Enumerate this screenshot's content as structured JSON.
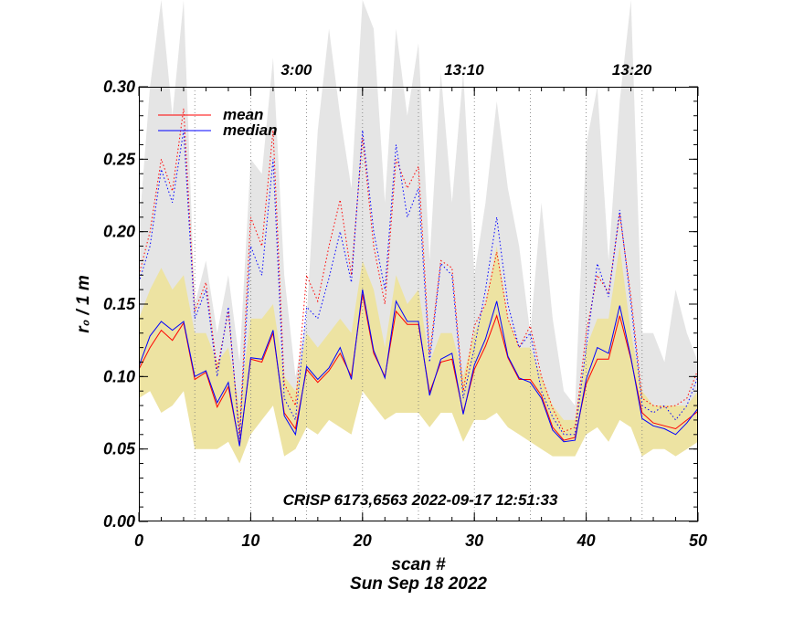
{
  "chart_data": {
    "type": "line",
    "title": "",
    "xlabel": "scan #",
    "ylabel": "r₀ / 1 m",
    "date_label": "Sun Sep 18 2022",
    "annotation": "CRISP 6173,6563 2022-09-17 12:51:33",
    "xlim": [
      0,
      50
    ],
    "ylim": [
      0,
      0.3
    ],
    "x_ticks": [
      0,
      10,
      20,
      30,
      40,
      50
    ],
    "x_tick_labels": [
      "0",
      "10",
      "20",
      "30",
      "40",
      "50"
    ],
    "y_ticks": [
      0,
      0.05,
      0.1,
      0.15,
      0.2,
      0.25,
      0.3
    ],
    "y_tick_labels": [
      "0.00",
      "0.05",
      "0.10",
      "0.15",
      "0.20",
      "0.25",
      "0.30"
    ],
    "time_markers": [
      {
        "label": "3:00",
        "x": 14
      },
      {
        "label": "13:10",
        "x": 29
      },
      {
        "label": "13:20",
        "x": 44
      }
    ],
    "vertical_markers": [
      5,
      10,
      15,
      20,
      25,
      30,
      35,
      40,
      45
    ],
    "legend": [
      {
        "name": "mean",
        "color": "#ff0000"
      },
      {
        "name": "median",
        "color": "#0000ff"
      }
    ],
    "x": [
      0,
      1,
      2,
      3,
      4,
      5,
      6,
      7,
      8,
      9,
      10,
      11,
      12,
      13,
      14,
      15,
      16,
      17,
      18,
      19,
      20,
      21,
      22,
      23,
      24,
      25,
      26,
      27,
      28,
      29,
      30,
      31,
      32,
      33,
      34,
      35,
      36,
      37,
      38,
      39,
      40,
      41,
      42,
      43,
      44,
      45,
      46,
      47,
      48,
      49,
      50
    ],
    "series": [
      {
        "name": "max envelope",
        "style": "band",
        "color": "#e5e5e5",
        "upper": [
          0.2,
          0.3,
          0.36,
          0.28,
          0.36,
          0.15,
          0.18,
          0.13,
          0.17,
          0.11,
          0.25,
          0.24,
          0.32,
          0.17,
          0.1,
          0.14,
          0.27,
          0.34,
          0.28,
          0.23,
          0.36,
          0.34,
          0.22,
          0.34,
          0.28,
          0.33,
          0.18,
          0.31,
          0.22,
          0.31,
          0.17,
          0.22,
          0.29,
          0.23,
          0.19,
          0.13,
          0.22,
          0.14,
          0.09,
          0.08,
          0.26,
          0.3,
          0.18,
          0.29,
          0.39,
          0.13,
          0.13,
          0.11,
          0.16,
          0.13,
          0.11
        ],
        "lower": [
          0.1,
          0.13,
          0.14,
          0.13,
          0.14,
          0.1,
          0.11,
          0.08,
          0.1,
          0.06,
          0.11,
          0.11,
          0.13,
          0.07,
          0.06,
          0.11,
          0.1,
          0.11,
          0.12,
          0.1,
          0.16,
          0.12,
          0.1,
          0.14,
          0.13,
          0.13,
          0.09,
          0.11,
          0.11,
          0.08,
          0.11,
          0.12,
          0.14,
          0.11,
          0.1,
          0.1,
          0.08,
          0.06,
          0.06,
          0.06,
          0.1,
          0.12,
          0.11,
          0.14,
          0.11,
          0.07,
          0.07,
          0.07,
          0.06,
          0.07,
          0.08
        ]
      },
      {
        "name": "quartile band",
        "style": "band",
        "color": "#ede3a2",
        "upper": [
          0.14,
          0.16,
          0.175,
          0.16,
          0.17,
          0.13,
          0.13,
          0.11,
          0.12,
          0.08,
          0.14,
          0.14,
          0.15,
          0.1,
          0.09,
          0.13,
          0.12,
          0.13,
          0.14,
          0.13,
          0.18,
          0.16,
          0.12,
          0.17,
          0.15,
          0.16,
          0.11,
          0.13,
          0.13,
          0.1,
          0.13,
          0.15,
          0.19,
          0.14,
          0.12,
          0.12,
          0.1,
          0.08,
          0.07,
          0.07,
          0.12,
          0.14,
          0.14,
          0.19,
          0.13,
          0.09,
          0.08,
          0.08,
          0.08,
          0.08,
          0.09
        ],
        "lower": [
          0.085,
          0.09,
          0.075,
          0.08,
          0.09,
          0.05,
          0.05,
          0.05,
          0.055,
          0.04,
          0.06,
          0.07,
          0.08,
          0.045,
          0.05,
          0.065,
          0.06,
          0.07,
          0.065,
          0.06,
          0.09,
          0.08,
          0.07,
          0.075,
          0.075,
          0.075,
          0.065,
          0.075,
          0.075,
          0.055,
          0.07,
          0.07,
          0.075,
          0.065,
          0.06,
          0.055,
          0.05,
          0.045,
          0.045,
          0.045,
          0.06,
          0.065,
          0.055,
          0.07,
          0.065,
          0.045,
          0.05,
          0.05,
          0.045,
          0.05,
          0.055
        ]
      },
      {
        "name": "mean",
        "style": "solid",
        "color": "#ff0000",
        "values": [
          0.105,
          0.12,
          0.132,
          0.125,
          0.137,
          0.098,
          0.103,
          0.079,
          0.093,
          0.053,
          0.112,
          0.11,
          0.13,
          0.075,
          0.064,
          0.105,
          0.096,
          0.104,
          0.116,
          0.1,
          0.157,
          0.116,
          0.1,
          0.145,
          0.136,
          0.136,
          0.089,
          0.11,
          0.112,
          0.075,
          0.105,
          0.121,
          0.142,
          0.113,
          0.098,
          0.098,
          0.087,
          0.065,
          0.056,
          0.058,
          0.095,
          0.112,
          0.112,
          0.142,
          0.112,
          0.075,
          0.068,
          0.066,
          0.064,
          0.07,
          0.076
        ]
      },
      {
        "name": "median",
        "style": "solid",
        "color": "#0000ff",
        "values": [
          0.107,
          0.128,
          0.138,
          0.132,
          0.138,
          0.1,
          0.104,
          0.082,
          0.096,
          0.052,
          0.113,
          0.112,
          0.132,
          0.073,
          0.06,
          0.107,
          0.098,
          0.106,
          0.12,
          0.098,
          0.16,
          0.118,
          0.099,
          0.152,
          0.138,
          0.138,
          0.087,
          0.112,
          0.116,
          0.074,
          0.108,
          0.126,
          0.152,
          0.114,
          0.099,
          0.096,
          0.085,
          0.063,
          0.055,
          0.056,
          0.098,
          0.12,
          0.116,
          0.149,
          0.113,
          0.071,
          0.066,
          0.064,
          0.06,
          0.068,
          0.078
        ]
      },
      {
        "name": "mean max",
        "style": "dotted",
        "color": "#ff0000",
        "values": [
          0.17,
          0.2,
          0.25,
          0.228,
          0.285,
          0.145,
          0.165,
          0.105,
          0.145,
          0.06,
          0.21,
          0.19,
          0.27,
          0.095,
          0.08,
          0.17,
          0.152,
          0.19,
          0.222,
          0.17,
          0.265,
          0.19,
          0.15,
          0.25,
          0.23,
          0.245,
          0.115,
          0.18,
          0.175,
          0.09,
          0.135,
          0.15,
          0.186,
          0.14,
          0.12,
          0.135,
          0.1,
          0.078,
          0.062,
          0.065,
          0.13,
          0.17,
          0.158,
          0.212,
          0.155,
          0.085,
          0.08,
          0.079,
          0.08,
          0.085,
          0.105
        ]
      },
      {
        "name": "median max",
        "style": "dotted",
        "color": "#0000ff",
        "values": [
          0.165,
          0.19,
          0.243,
          0.22,
          0.27,
          0.14,
          0.16,
          0.1,
          0.148,
          0.057,
          0.19,
          0.17,
          0.25,
          0.085,
          0.07,
          0.148,
          0.14,
          0.168,
          0.2,
          0.165,
          0.27,
          0.2,
          0.16,
          0.26,
          0.21,
          0.23,
          0.11,
          0.178,
          0.17,
          0.085,
          0.12,
          0.16,
          0.21,
          0.15,
          0.12,
          0.13,
          0.09,
          0.072,
          0.06,
          0.06,
          0.12,
          0.178,
          0.155,
          0.215,
          0.15,
          0.08,
          0.075,
          0.08,
          0.07,
          0.08,
          0.1
        ]
      }
    ]
  }
}
